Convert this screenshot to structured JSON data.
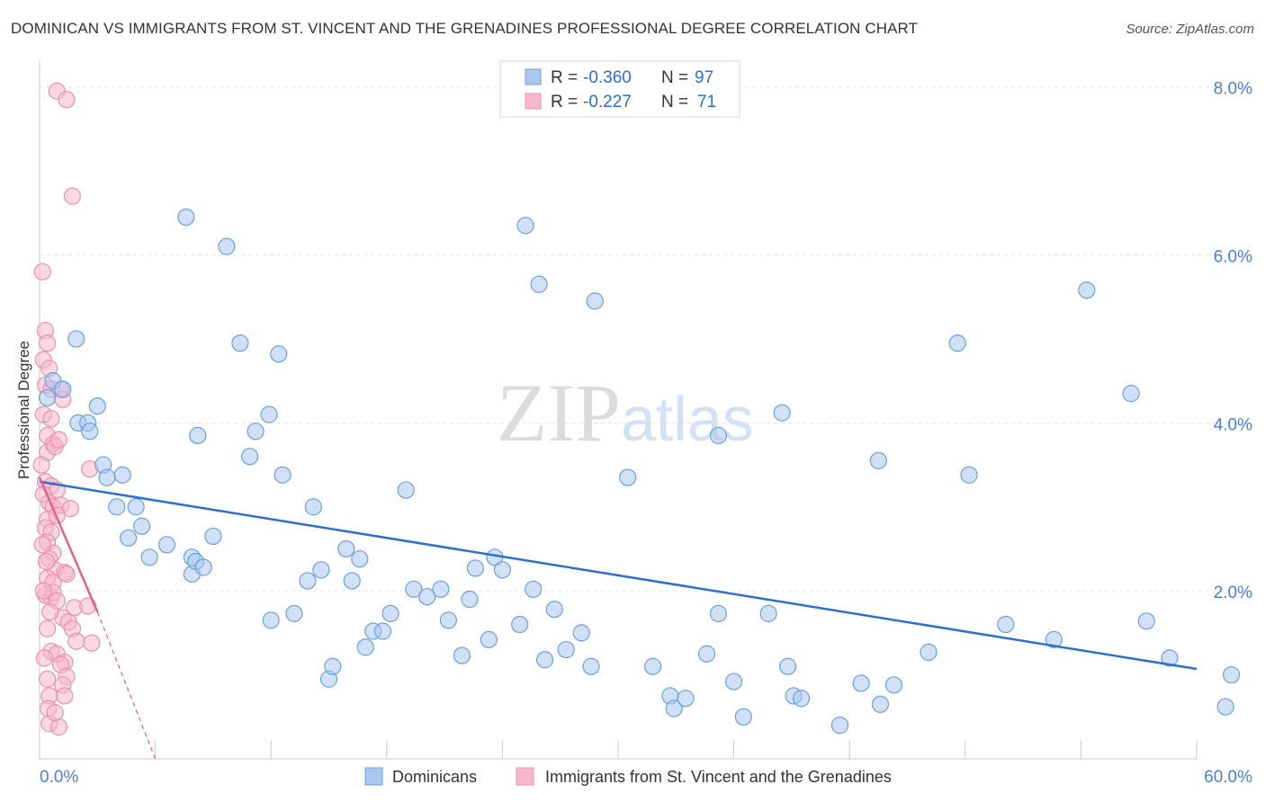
{
  "header": {
    "title": "DOMINICAN VS IMMIGRANTS FROM ST. VINCENT AND THE GRENADINES PROFESSIONAL DEGREE CORRELATION CHART",
    "source": "Source: ZipAtlas.com"
  },
  "watermark": {
    "zip": "ZIP",
    "atlas": "atlas"
  },
  "legend_stats": [
    {
      "r_label": "R = ",
      "r_value": "-0.360",
      "n_label": "N = ",
      "n_value": "97"
    },
    {
      "r_label": "R = ",
      "r_value": "-0.227",
      "n_label": "N = ",
      "n_value": "71"
    }
  ],
  "colors": {
    "blue_fill": "#a9c8f0",
    "blue_stroke": "#6e9fd8",
    "blue_line": "#2b6fcf",
    "pink_fill": "#f7b8cc",
    "pink_stroke": "#e892ad",
    "pink_line": "#e0608e",
    "axis_text": "#4a7fd0",
    "grid": "#e3e3e3"
  },
  "chart_data": {
    "type": "scatter",
    "title": "DOMINICAN VS IMMIGRANTS FROM ST. VINCENT AND THE GRENADINES PROFESSIONAL DEGREE CORRELATION CHART",
    "xlabel": "",
    "ylabel": "Professional Degree",
    "xlim": [
      0,
      60
    ],
    "ylim": [
      0,
      8.2
    ],
    "x_tick_labels": [
      "0.0%",
      "60.0%"
    ],
    "y_ticks": [
      2,
      4,
      6,
      8
    ],
    "y_tick_labels": [
      "2.0%",
      "4.0%",
      "6.0%",
      "8.0%"
    ],
    "grid": true,
    "legend_position": "bottom",
    "series": [
      {
        "name": "Dominicans",
        "color": "#a9c8f0",
        "trend": {
          "x": [
            0,
            60
          ],
          "y": [
            3.3,
            1.07
          ],
          "dashed_extension": false
        },
        "points": [
          [
            0.4,
            4.3
          ],
          [
            0.7,
            4.5
          ],
          [
            1.2,
            4.4
          ],
          [
            2.0,
            4.0
          ],
          [
            3.0,
            4.2
          ],
          [
            2.5,
            4.0
          ],
          [
            2.6,
            3.9
          ],
          [
            1.9,
            5.0
          ],
          [
            3.3,
            3.5
          ],
          [
            3.5,
            3.35
          ],
          [
            4.3,
            3.38
          ],
          [
            4.0,
            3.0
          ],
          [
            5.0,
            3.0
          ],
          [
            4.6,
            2.63
          ],
          [
            5.3,
            2.77
          ],
          [
            5.7,
            2.4
          ],
          [
            6.6,
            2.55
          ],
          [
            7.9,
            2.4
          ],
          [
            7.6,
            6.45
          ],
          [
            8.2,
            3.85
          ],
          [
            7.9,
            2.2
          ],
          [
            9.0,
            2.65
          ],
          [
            8.1,
            2.35
          ],
          [
            8.5,
            2.28
          ],
          [
            9.7,
            6.1
          ],
          [
            10.4,
            4.95
          ],
          [
            10.9,
            3.6
          ],
          [
            11.2,
            3.9
          ],
          [
            11.9,
            4.1
          ],
          [
            12.6,
            3.38
          ],
          [
            12.4,
            4.82
          ],
          [
            12.0,
            1.65
          ],
          [
            13.2,
            1.73
          ],
          [
            13.9,
            2.12
          ],
          [
            14.6,
            2.25
          ],
          [
            14.2,
            3.0
          ],
          [
            15.0,
            0.95
          ],
          [
            15.2,
            1.1
          ],
          [
            15.9,
            2.5
          ],
          [
            16.6,
            2.38
          ],
          [
            16.2,
            2.12
          ],
          [
            16.9,
            1.33
          ],
          [
            17.3,
            1.52
          ],
          [
            17.8,
            1.52
          ],
          [
            18.2,
            1.73
          ],
          [
            19.0,
            3.2
          ],
          [
            19.4,
            2.02
          ],
          [
            20.1,
            1.93
          ],
          [
            20.8,
            2.02
          ],
          [
            21.2,
            1.65
          ],
          [
            21.9,
            1.23
          ],
          [
            22.3,
            1.9
          ],
          [
            22.6,
            2.27
          ],
          [
            23.3,
            1.42
          ],
          [
            23.6,
            2.4
          ],
          [
            24.0,
            2.25
          ],
          [
            24.9,
            1.6
          ],
          [
            25.6,
            2.02
          ],
          [
            26.2,
            1.18
          ],
          [
            26.7,
            1.78
          ],
          [
            27.3,
            1.3
          ],
          [
            28.1,
            1.5
          ],
          [
            28.6,
            1.1
          ],
          [
            28.8,
            5.45
          ],
          [
            25.2,
            6.35
          ],
          [
            25.9,
            5.65
          ],
          [
            31.8,
            1.1
          ],
          [
            30.5,
            3.35
          ],
          [
            32.7,
            0.75
          ],
          [
            32.9,
            0.6
          ],
          [
            33.5,
            0.72
          ],
          [
            34.6,
            1.25
          ],
          [
            35.2,
            1.73
          ],
          [
            35.2,
            3.85
          ],
          [
            36.0,
            0.92
          ],
          [
            36.5,
            0.5
          ],
          [
            37.8,
            1.73
          ],
          [
            38.5,
            4.12
          ],
          [
            38.8,
            1.1
          ],
          [
            39.1,
            0.75
          ],
          [
            39.5,
            0.72
          ],
          [
            41.5,
            0.4
          ],
          [
            42.6,
            0.9
          ],
          [
            43.5,
            3.55
          ],
          [
            43.6,
            0.65
          ],
          [
            44.3,
            0.88
          ],
          [
            46.1,
            1.27
          ],
          [
            47.6,
            4.95
          ],
          [
            48.2,
            3.38
          ],
          [
            50.1,
            1.6
          ],
          [
            52.6,
            1.42
          ],
          [
            54.3,
            5.58
          ],
          [
            56.6,
            4.35
          ],
          [
            57.4,
            1.64
          ],
          [
            58.6,
            1.2
          ],
          [
            61.8,
            1.0
          ],
          [
            61.5,
            0.62
          ]
        ]
      },
      {
        "name": "Immigrants from St. Vincent and the Grenadines",
        "color": "#f7b8cc",
        "trend": {
          "x": [
            0,
            3.0
          ],
          "y": [
            3.35,
            1.75
          ],
          "dashed_to": [
            6.0,
            0.0
          ]
        },
        "points": [
          [
            0.9,
            7.95
          ],
          [
            1.4,
            7.85
          ],
          [
            1.7,
            6.7
          ],
          [
            0.15,
            5.8
          ],
          [
            0.3,
            5.1
          ],
          [
            0.4,
            4.95
          ],
          [
            0.2,
            4.75
          ],
          [
            0.5,
            4.65
          ],
          [
            0.3,
            4.45
          ],
          [
            0.6,
            4.4
          ],
          [
            1.1,
            4.4
          ],
          [
            1.2,
            4.28
          ],
          [
            0.2,
            4.1
          ],
          [
            0.6,
            4.05
          ],
          [
            0.4,
            3.85
          ],
          [
            0.7,
            3.75
          ],
          [
            0.4,
            3.65
          ],
          [
            0.8,
            3.72
          ],
          [
            1.0,
            3.8
          ],
          [
            0.1,
            3.5
          ],
          [
            2.6,
            3.45
          ],
          [
            0.3,
            3.3
          ],
          [
            0.6,
            3.25
          ],
          [
            0.9,
            3.2
          ],
          [
            0.2,
            3.15
          ],
          [
            0.5,
            3.05
          ],
          [
            0.7,
            3.0
          ],
          [
            1.1,
            3.02
          ],
          [
            1.6,
            2.98
          ],
          [
            0.4,
            2.85
          ],
          [
            0.9,
            2.9
          ],
          [
            0.3,
            2.75
          ],
          [
            0.6,
            2.7
          ],
          [
            0.4,
            2.58
          ],
          [
            0.7,
            2.45
          ],
          [
            0.5,
            2.38
          ],
          [
            0.8,
            2.25
          ],
          [
            1.3,
            2.22
          ],
          [
            1.4,
            2.2
          ],
          [
            0.4,
            2.15
          ],
          [
            0.7,
            2.1
          ],
          [
            0.3,
            1.95
          ],
          [
            0.6,
            1.92
          ],
          [
            0.7,
            1.98
          ],
          [
            0.9,
            1.88
          ],
          [
            1.8,
            1.8
          ],
          [
            2.5,
            1.82
          ],
          [
            1.2,
            1.68
          ],
          [
            1.5,
            1.63
          ],
          [
            0.4,
            1.55
          ],
          [
            1.7,
            1.55
          ],
          [
            1.9,
            1.4
          ],
          [
            2.7,
            1.38
          ],
          [
            0.6,
            1.28
          ],
          [
            0.9,
            1.25
          ],
          [
            1.3,
            1.15
          ],
          [
            1.1,
            1.12
          ],
          [
            0.4,
            0.95
          ],
          [
            1.4,
            0.98
          ],
          [
            1.2,
            0.88
          ],
          [
            0.5,
            0.75
          ],
          [
            1.3,
            0.75
          ],
          [
            0.5,
            0.42
          ],
          [
            1.0,
            0.38
          ],
          [
            0.15,
            2.55
          ],
          [
            0.2,
            2.0
          ],
          [
            0.35,
            2.35
          ],
          [
            0.55,
            1.75
          ],
          [
            0.25,
            1.2
          ],
          [
            0.45,
            0.6
          ],
          [
            0.8,
            0.55
          ]
        ]
      }
    ]
  }
}
